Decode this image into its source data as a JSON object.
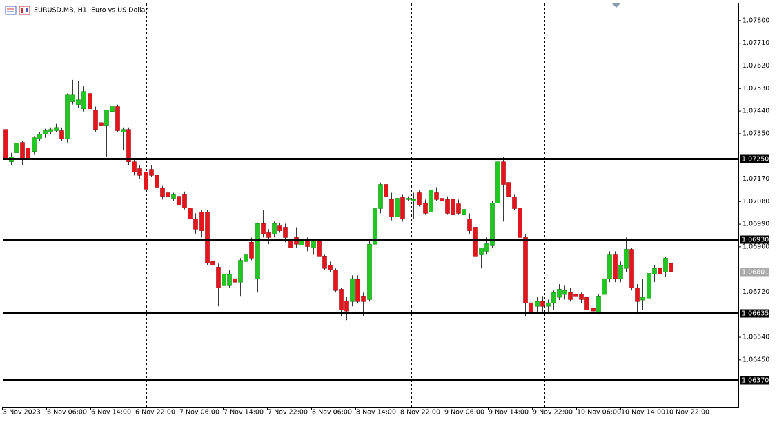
{
  "chart_data": {
    "type": "candlestick",
    "title": "EURUSD.MB, H1:  Euro vs US Dollar",
    "up_color": "#1ec81e",
    "down_color": "#e6141c",
    "wick_color": "#3a3a3a",
    "ylim": [
      1.06263,
      1.07882
    ],
    "yticks": [
      {
        "value": 1.078,
        "label": "1.07800"
      },
      {
        "value": 1.0771,
        "label": "1.07710"
      },
      {
        "value": 1.0762,
        "label": "1.07620"
      },
      {
        "value": 1.0753,
        "label": "1.07530"
      },
      {
        "value": 1.0744,
        "label": "1.07440"
      },
      {
        "value": 1.0735,
        "label": "1.07350"
      },
      {
        "value": 1.0717,
        "label": "1.07170"
      },
      {
        "value": 1.0708,
        "label": "1.07080"
      },
      {
        "value": 1.0699,
        "label": "1.06990"
      },
      {
        "value": 1.069,
        "label": "1.06900"
      },
      {
        "value": 1.0672,
        "label": "1.06720"
      },
      {
        "value": 1.0654,
        "label": "1.06540"
      },
      {
        "value": 1.0645,
        "label": "1.06450"
      }
    ],
    "levels": [
      {
        "value": 1.0725,
        "label": "1.07250"
      },
      {
        "value": 1.0693,
        "label": "1.06930"
      },
      {
        "value": 1.06635,
        "label": "1.06635"
      },
      {
        "value": 1.0637,
        "label": "1.06370"
      }
    ],
    "current_price": {
      "value": 1.06801,
      "label": "1.06801"
    },
    "x_labels": [
      "3 Nov 2023",
      "6 Nov 06:00",
      "6 Nov 14:00",
      "6 Nov 22:00",
      "7 Nov 06:00",
      "7 Nov 14:00",
      "7 Nov 22:00",
      "8 Nov 06:00",
      "8 Nov 14:00",
      "8 Nov 22:00",
      "9 Nov 06:00",
      "9 Nov 14:00",
      "9 Nov 22:00",
      "10 Nov 06:00",
      "10 Nov 14:00",
      "10 Nov 22:00"
    ],
    "candles": [
      [
        1.07367,
        1.07375,
        1.07225,
        1.07252
      ],
      [
        1.07238,
        1.07274,
        1.07225,
        1.07257
      ],
      [
        1.07274,
        1.07315,
        1.07266,
        1.07312
      ],
      [
        1.07315,
        1.0732,
        1.07225,
        1.07247
      ],
      [
        1.07293,
        1.07307,
        1.07238,
        1.07252
      ],
      [
        1.07279,
        1.0734,
        1.07266,
        1.07334
      ],
      [
        1.07329,
        1.07356,
        1.0732,
        1.07348
      ],
      [
        1.07348,
        1.0737,
        1.07334,
        1.07362
      ],
      [
        1.07356,
        1.07375,
        1.07348,
        1.07367
      ],
      [
        1.07362,
        1.07389,
        1.07356,
        1.07375
      ],
      [
        1.07362,
        1.07375,
        1.0732,
        1.07329
      ],
      [
        1.07329,
        1.0751,
        1.07315,
        1.07504
      ],
      [
        1.07477,
        1.07564,
        1.07466,
        1.07504
      ],
      [
        1.07466,
        1.07559,
        1.07452,
        1.07485
      ],
      [
        1.07449,
        1.0754,
        1.07438,
        1.07518
      ],
      [
        1.0751,
        1.0754,
        1.07403,
        1.07449
      ],
      [
        1.07444,
        1.07458,
        1.07356,
        1.07367
      ],
      [
        1.07394,
        1.07403,
        1.07362,
        1.07381
      ],
      [
        1.07381,
        1.07444,
        1.07257,
        1.07444
      ],
      [
        1.07438,
        1.0749,
        1.0743,
        1.07458
      ],
      [
        1.07458,
        1.07466,
        1.07356,
        1.07362
      ],
      [
        1.07356,
        1.07375,
        1.07285,
        1.07367
      ],
      [
        1.07367,
        1.07375,
        1.07225,
        1.07238
      ],
      [
        1.07238,
        1.07247,
        1.07184,
        1.07197
      ],
      [
        1.07211,
        1.07225,
        1.0717,
        1.07184
      ],
      [
        1.07197,
        1.07211,
        1.0712,
        1.07129
      ],
      [
        1.07208,
        1.07225,
        1.07178,
        1.07184
      ],
      [
        1.07184,
        1.07197,
        1.07126,
        1.07137
      ],
      [
        1.07134,
        1.07142,
        1.07088,
        1.07101
      ],
      [
        1.07115,
        1.07126,
        1.0706,
        1.07101
      ],
      [
        1.07093,
        1.07115,
        1.07082,
        1.07107
      ],
      [
        1.07101,
        1.07115,
        1.0706,
        1.07066
      ],
      [
        1.07107,
        1.0712,
        1.07049,
        1.07055
      ],
      [
        1.07055,
        1.07066,
        1.07,
        1.07011
      ],
      [
        1.07011,
        1.07033,
        1.06951,
        1.0697
      ],
      [
        1.07038,
        1.07047,
        1.06937,
        1.06964
      ],
      [
        1.07038,
        1.07047,
        1.06827,
        1.06836
      ],
      [
        1.06841,
        1.06855,
        1.068,
        1.06827
      ],
      [
        1.06819,
        1.06833,
        1.06663,
        1.06737
      ],
      [
        1.06745,
        1.068,
        1.06731,
        1.06792
      ],
      [
        1.06745,
        1.06808,
        1.06737,
        1.06792
      ],
      [
        1.06773,
        1.06786,
        1.06644,
        1.06759
      ],
      [
        1.06759,
        1.06855,
        1.06704,
        1.06846
      ],
      [
        1.06841,
        1.06896,
        1.06833,
        1.06868
      ],
      [
        1.06918,
        1.06937,
        1.06846,
        1.06855
      ],
      [
        1.06773,
        1.06996,
        1.06718,
        1.06992
      ],
      [
        1.06992,
        1.07047,
        1.06937,
        1.06951
      ],
      [
        1.06956,
        1.0697,
        1.0691,
        1.06937
      ],
      [
        1.06951,
        1.07,
        1.06937,
        1.06992
      ],
      [
        1.06983,
        1.06996,
        1.06956,
        1.06964
      ],
      [
        1.06978,
        1.06992,
        1.06918,
        1.06937
      ],
      [
        1.06923,
        1.06937,
        1.06882,
        1.06896
      ],
      [
        1.06937,
        1.06978,
        1.06896,
        1.0691
      ],
      [
        1.06907,
        1.06937,
        1.06882,
        1.06929
      ],
      [
        1.06923,
        1.06937,
        1.06882,
        1.06901
      ],
      [
        1.06896,
        1.06929,
        1.06868,
        1.06923
      ],
      [
        1.06923,
        1.06929,
        1.06855,
        1.06863
      ],
      [
        1.06863,
        1.06868,
        1.06808,
        1.06814
      ],
      [
        1.06827,
        1.06841,
        1.068,
        1.06808
      ],
      [
        1.06808,
        1.06814,
        1.06718,
        1.06726
      ],
      [
        1.06731,
        1.06737,
        1.06622,
        1.06649
      ],
      [
        1.06685,
        1.06699,
        1.06608,
        1.06644
      ],
      [
        1.06682,
        1.06786,
        1.06663,
        1.06773
      ],
      [
        1.0677,
        1.06786,
        1.06677,
        1.06682
      ],
      [
        1.06704,
        1.06718,
        1.06622,
        1.06682
      ],
      [
        1.0669,
        1.06923,
        1.06682,
        1.0691
      ],
      [
        1.0691,
        1.07066,
        1.06841,
        1.07052
      ],
      [
        1.07052,
        1.07156,
        1.07033,
        1.07148
      ],
      [
        1.07148,
        1.0716,
        1.07088,
        1.07101
      ],
      [
        1.07088,
        1.07115,
        1.07005,
        1.07019
      ],
      [
        1.07019,
        1.07126,
        1.07005,
        1.07093
      ],
      [
        1.07096,
        1.07107,
        1.07,
        1.07011
      ],
      [
        1.07088,
        1.07101,
        1.07082,
        1.07093
      ],
      [
        1.07082,
        1.07115,
        1.07011,
        1.07088
      ],
      [
        1.07115,
        1.07126,
        1.0706,
        1.07066
      ],
      [
        1.07074,
        1.07088,
        1.07027,
        1.07033
      ],
      [
        1.07038,
        1.07142,
        1.07027,
        1.07126
      ],
      [
        1.07115,
        1.07137,
        1.07082,
        1.07088
      ],
      [
        1.07093,
        1.07107,
        1.07074,
        1.07082
      ],
      [
        1.07088,
        1.07101,
        1.07027,
        1.07033
      ],
      [
        1.07088,
        1.07101,
        1.07019,
        1.07027
      ],
      [
        1.07071,
        1.07088,
        1.07027,
        1.07033
      ],
      [
        1.07027,
        1.07066,
        1.07011,
        1.07049
      ],
      [
        1.07011,
        1.07033,
        1.06951,
        1.06964
      ],
      [
        1.06978,
        1.06992,
        1.06846,
        1.06863
      ],
      [
        1.06868,
        1.06896,
        1.06814,
        1.06896
      ],
      [
        1.06882,
        1.06937,
        1.06868,
        1.06912
      ],
      [
        1.06904,
        1.07082,
        1.06896,
        1.07074
      ],
      [
        1.07074,
        1.07266,
        1.07033,
        1.07238
      ],
      [
        1.07238,
        1.07257,
        1.07,
        1.07148
      ],
      [
        1.07156,
        1.0717,
        1.07088,
        1.07101
      ],
      [
        1.07099,
        1.07107,
        1.07047,
        1.07052
      ],
      [
        1.07055,
        1.07066,
        1.06929,
        1.06937
      ],
      [
        1.06937,
        1.06951,
        1.06622,
        1.06677
      ],
      [
        1.06677,
        1.06688,
        1.06622,
        1.06635
      ],
      [
        1.06663,
        1.06699,
        1.06635,
        1.06682
      ],
      [
        1.06682,
        1.06704,
        1.06635,
        1.06663
      ],
      [
        1.06663,
        1.0669,
        1.06635,
        1.06677
      ],
      [
        1.06677,
        1.06726,
        1.06649,
        1.06718
      ],
      [
        1.06699,
        1.06751,
        1.06688,
        1.06731
      ],
      [
        1.0671,
        1.06745,
        1.0669,
        1.06726
      ],
      [
        1.06718,
        1.06737,
        1.06682,
        1.0669
      ],
      [
        1.0671,
        1.06731,
        1.0669,
        1.06704
      ],
      [
        1.0671,
        1.06718,
        1.06677,
        1.0669
      ],
      [
        1.06699,
        1.0671,
        1.06635,
        1.06649
      ],
      [
        1.06655,
        1.06677,
        1.06562,
        1.06644
      ],
      [
        1.06635,
        1.0671,
        1.0663,
        1.06704
      ],
      [
        1.0671,
        1.06786,
        1.06699,
        1.06773
      ],
      [
        1.06773,
        1.06882,
        1.06759,
        1.06868
      ],
      [
        1.06868,
        1.06882,
        1.06759,
        1.06773
      ],
      [
        1.06773,
        1.06841,
        1.06759,
        1.06827
      ],
      [
        1.06814,
        1.06937,
        1.068,
        1.0689
      ],
      [
        1.0689,
        1.06896,
        1.06726,
        1.06737
      ],
      [
        1.06737,
        1.06751,
        1.0663,
        1.06682
      ],
      [
        1.06688,
        1.06773,
        1.06649,
        1.06699
      ],
      [
        1.06696,
        1.06808,
        1.06635,
        1.06794
      ],
      [
        1.06792,
        1.06827,
        1.06759,
        1.06814
      ],
      [
        1.06814,
        1.0686,
        1.06786,
        1.06792
      ],
      [
        1.068,
        1.0686,
        1.06781,
        1.06855
      ],
      [
        1.06833,
        1.06846,
        1.068,
        1.06801
      ]
    ]
  }
}
